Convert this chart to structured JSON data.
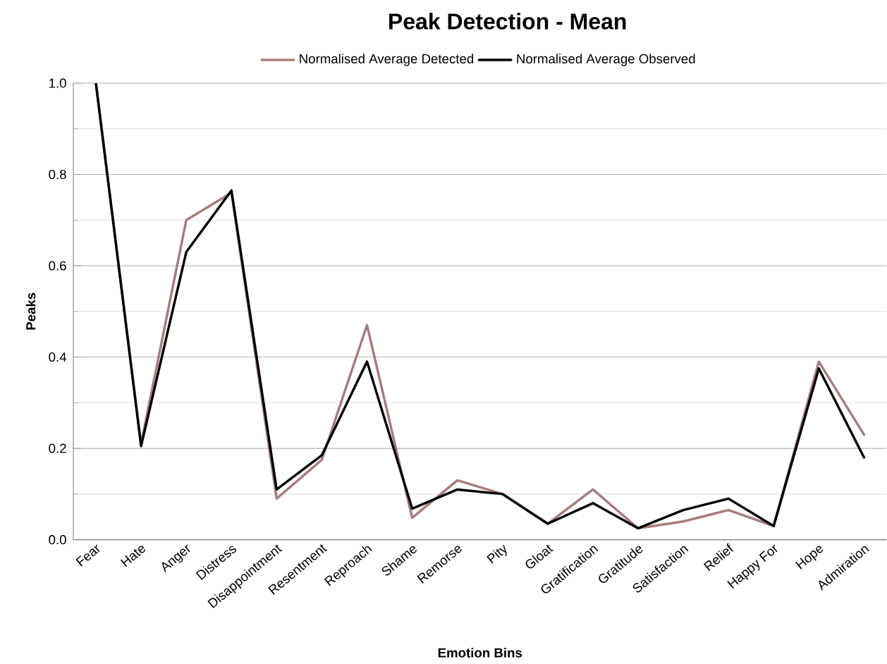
{
  "chart_data": {
    "type": "line",
    "title": "Peak Detection  - Mean",
    "xlabel": "Emotion Bins",
    "ylabel": "Peaks",
    "categories": [
      "Fear",
      "Hate",
      "Anger",
      "Distress",
      "Disappointment",
      "Resentment",
      "Reproach",
      "Shame",
      "Remorse",
      "Pity",
      "Gloat",
      "Gratification",
      "Gratitude",
      "Satisfaction",
      "Relief",
      "Happy For",
      "Hope",
      "Admiration"
    ],
    "series": [
      {
        "name": "Normalised Average Detected",
        "color": "#a67c7c",
        "values": [
          1.0,
          0.21,
          0.7,
          0.76,
          0.09,
          0.175,
          0.47,
          0.048,
          0.13,
          0.1,
          0.035,
          0.11,
          0.025,
          0.04,
          0.065,
          0.03,
          0.39,
          0.23
        ]
      },
      {
        "name": "Normalised Average Observed",
        "color": "#000000",
        "values": [
          1.0,
          0.205,
          0.63,
          0.765,
          0.11,
          0.185,
          0.39,
          0.068,
          0.11,
          0.1,
          0.035,
          0.08,
          0.025,
          0.065,
          0.09,
          0.03,
          0.375,
          0.18
        ]
      }
    ],
    "ylim": [
      0,
      1.0
    ],
    "yticks": [
      {
        "value": 0,
        "label": "0.0"
      },
      {
        "value": 0.2,
        "label": "0.2"
      },
      {
        "value": 0.4,
        "label": "0.4"
      },
      {
        "value": 0.6,
        "label": "0.6"
      },
      {
        "value": 0.8,
        "label": "0.8"
      },
      {
        "value": 1.0,
        "label": "1.0"
      }
    ],
    "grid": "y",
    "legend": "top",
    "marker": "none",
    "line_style": "solid"
  }
}
